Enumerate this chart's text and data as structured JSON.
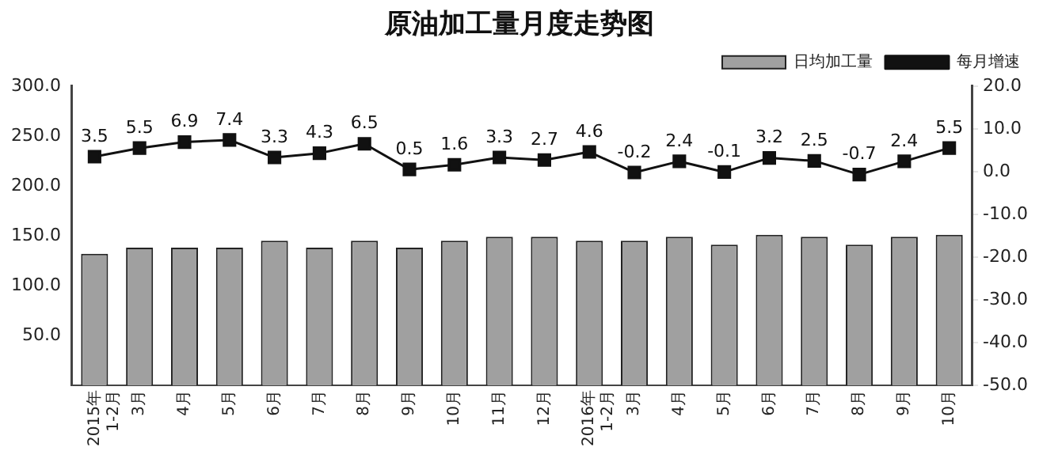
{
  "chart_data": {
    "type": "bar",
    "title": "原油加工量月度走势图",
    "categories": [
      "2015年 1-2月",
      "3月",
      "4月",
      "5月",
      "6月",
      "7月",
      "8月",
      "9月",
      "10月",
      "11月",
      "12月",
      "2016年 1-2月",
      "3月",
      "4月",
      "5月",
      "6月",
      "7月",
      "8月",
      "9月",
      "10月"
    ],
    "series": [
      {
        "name": "日均加工量",
        "color": "#a0a0a0",
        "values": [
          132,
          138,
          138,
          138,
          145,
          138,
          145,
          138,
          145,
          149,
          149,
          145,
          145,
          149,
          141,
          151,
          149,
          141,
          149,
          151
        ]
      },
      {
        "name": "每月增速",
        "type": "line",
        "axis": "y2",
        "color": "#111111",
        "marker": "square",
        "values": [
          3.5,
          5.5,
          6.9,
          7.4,
          3.3,
          4.3,
          6.5,
          0.5,
          1.6,
          3.3,
          2.7,
          4.6,
          -0.2,
          2.4,
          -0.1,
          3.2,
          2.5,
          -0.7,
          2.4,
          5.5
        ],
        "value_labels": [
          "3.5",
          "5.5",
          "6.9",
          "7.4",
          "3.3",
          "4.3",
          "6.5",
          "0.5",
          "1.6",
          "3.3",
          "2.7",
          "4.6",
          "-0.2",
          "2.4",
          "-0.1",
          "3.2",
          "2.5",
          "-0.7",
          "2.4",
          "5.5"
        ]
      }
    ],
    "ylim": [
      0,
      300
    ],
    "yticks": [
      {
        "value": 0,
        "label": null
      },
      {
        "value": 50,
        "label": "50.0"
      },
      {
        "value": 100,
        "label": "100.0"
      },
      {
        "value": 150,
        "label": "150.0"
      },
      {
        "value": 200,
        "label": "200.0"
      },
      {
        "value": 250,
        "label": "250.0"
      },
      {
        "value": 300,
        "label": "300.0"
      }
    ],
    "y2lim": [
      -50,
      20
    ],
    "y2ticks": [
      {
        "value": -50,
        "label": "-50.0"
      },
      {
        "value": -40,
        "label": "-40.0"
      },
      {
        "value": -30,
        "label": "-30.0"
      },
      {
        "value": -20,
        "label": "-20.0"
      },
      {
        "value": -10,
        "label": "-10.0"
      },
      {
        "value": 0,
        "label": "0.0"
      },
      {
        "value": 10,
        "label": "10.0"
      },
      {
        "value": 20,
        "label": "20.0"
      }
    ],
    "grid": false,
    "legend": "top right"
  }
}
